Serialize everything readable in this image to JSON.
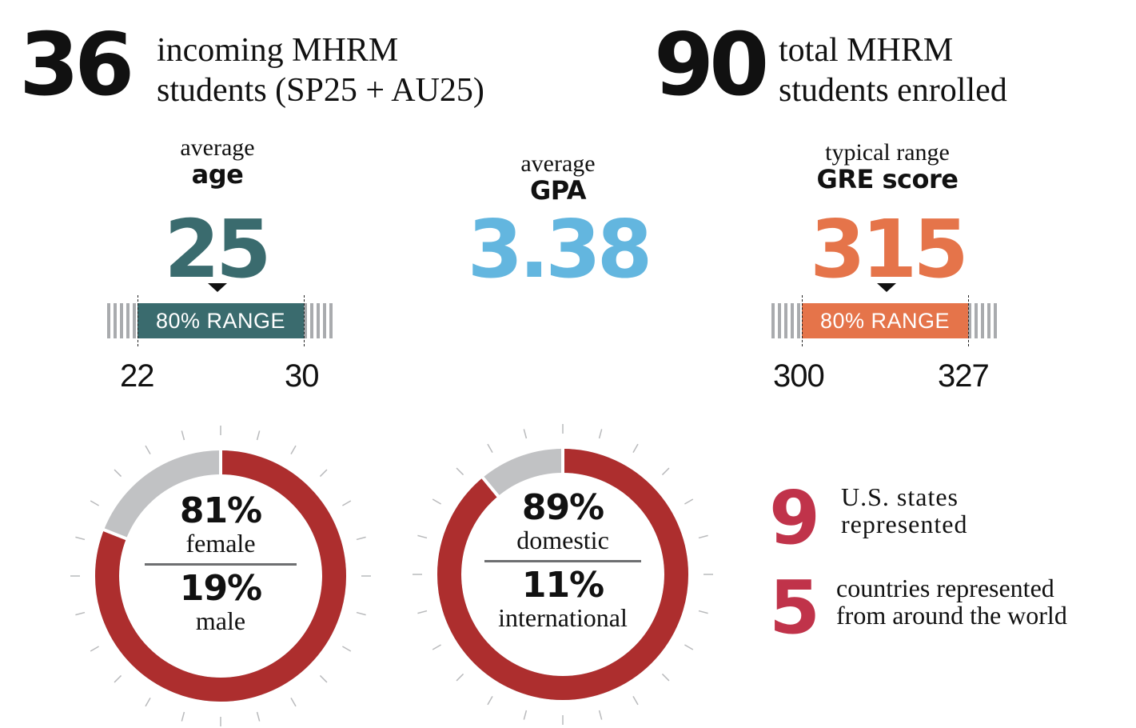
{
  "headline_left": {
    "number": "36",
    "line1": "incoming MHRM",
    "line2": "students (SP25 + AU25)"
  },
  "headline_right": {
    "number": "90",
    "line1": "total MHRM",
    "line2": "students enrolled"
  },
  "age": {
    "label_small": "average",
    "label_bold": "age",
    "value": "25",
    "range_label": "80% RANGE",
    "range_min": "22",
    "range_max": "30",
    "color": "#3a6b6e"
  },
  "gpa": {
    "label_small": "average",
    "label_bold": "GPA",
    "value": "3.38",
    "color": "#63b6df"
  },
  "gre": {
    "label_small": "typical range",
    "label_bold": "GRE score",
    "value": "315",
    "range_label": "80% RANGE",
    "range_min": "300",
    "range_max": "327",
    "color": "#e5744a"
  },
  "donut_gender": {
    "primary_pct_value": 81,
    "top_pct": "81%",
    "top_word": "female",
    "bottom_pct": "19%",
    "bottom_word": "male",
    "primary_color": "#ad2e2e",
    "secondary_color": "#c1c2c4"
  },
  "donut_origin": {
    "primary_pct_value": 89,
    "top_pct": "89%",
    "top_word": "domestic",
    "bottom_pct": "11%",
    "bottom_word": "international",
    "primary_color": "#ad2e2e",
    "secondary_color": "#c1c2c4"
  },
  "facts": {
    "states": {
      "number": "9",
      "line1": "U.S. states",
      "line2": "represented"
    },
    "countries": {
      "number": "5",
      "line1": "countries represented",
      "line2": "from around the world"
    },
    "color": "#c0334a"
  }
}
